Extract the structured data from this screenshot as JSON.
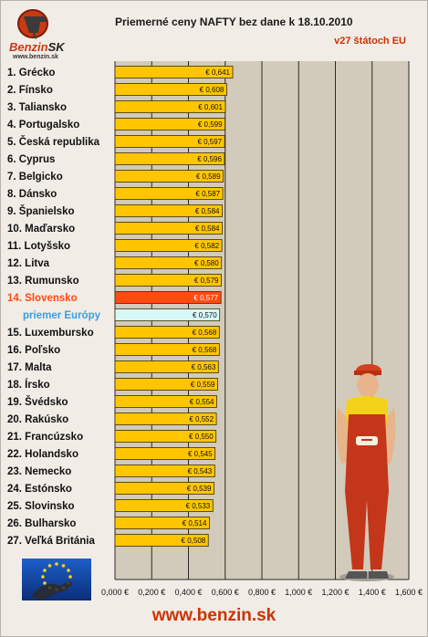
{
  "header": {
    "logo_name": "Benzin",
    "logo_suffix": "SK",
    "logo_url": "www.benzin.sk"
  },
  "footer": {
    "site": "www.benzin.sk"
  },
  "colors": {
    "bar": "#ffc600",
    "highlight_bar": "#ff4a10",
    "highlight_label": "#ff4a10",
    "average_bar": "#d8f8f8",
    "average_label": "#3a9fe0",
    "plot_bg": "#d2cbbb",
    "accent": "#cc3300"
  },
  "chart_data": {
    "type": "bar",
    "orientation": "horizontal",
    "title": "Priemerné ceny NAFTY bez dane k 18.10.2010",
    "subtitle": "v27 štátoch EU",
    "categories": [
      "1. Grécko",
      "2. Fínsko",
      "3. Taliansko",
      "4. Portugalsko",
      "5. Česká republika",
      "6. Cyprus",
      "7. Belgicko",
      "8. Dánsko",
      "9. Španielsko",
      "10. Maďarsko",
      "11. Lotyšsko",
      "12. Litva",
      "13. Rumunsko",
      "14. Slovensko",
      "priemer Európy",
      "15. Luxembursko",
      "16. Poľsko",
      "17. Malta",
      "18. Írsko",
      "19. Švédsko",
      "20. Rakúsko",
      "21. Francúzsko",
      "22. Holandsko",
      "23. Nemecko",
      "24. Estónsko",
      "25. Slovinsko",
      "26. Bulharsko",
      "27. Veľká Británia"
    ],
    "values": [
      0.641,
      0.608,
      0.601,
      0.599,
      0.597,
      0.596,
      0.589,
      0.587,
      0.584,
      0.584,
      0.582,
      0.58,
      0.579,
      0.577,
      0.57,
      0.568,
      0.568,
      0.563,
      0.559,
      0.554,
      0.552,
      0.55,
      0.545,
      0.543,
      0.539,
      0.533,
      0.514,
      0.508
    ],
    "value_labels": [
      "€ 0,641",
      "€ 0,608",
      "€ 0,601",
      "€ 0,599",
      "€ 0,597",
      "€ 0,596",
      "€ 0,589",
      "€ 0,587",
      "€ 0,584",
      "€ 0,584",
      "€ 0,582",
      "€ 0,580",
      "€ 0,579",
      "€ 0,577",
      "€ 0,570",
      "€ 0,568",
      "€ 0,568",
      "€ 0,563",
      "€ 0,559",
      "€ 0,554",
      "€ 0,552",
      "€ 0,550",
      "€ 0,545",
      "€ 0,543",
      "€ 0,539",
      "€ 0,533",
      "€ 0,514",
      "€ 0,508"
    ],
    "highlight_index": 13,
    "average_index": 14,
    "xlim": [
      0,
      1.6
    ],
    "x_ticks": [
      0,
      0.2,
      0.4,
      0.6,
      0.8,
      1.0,
      1.2,
      1.4,
      1.6
    ],
    "x_tick_labels": [
      "0,000 €",
      "0,200 €",
      "0,400 €",
      "0,600 €",
      "0,800 €",
      "1,000 €",
      "1,200 €",
      "1,400 €",
      "1,600 €"
    ],
    "grid": true
  }
}
